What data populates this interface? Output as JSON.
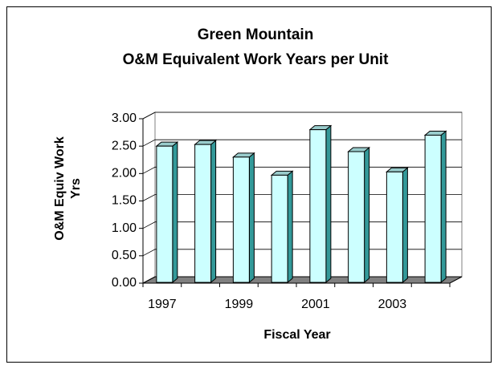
{
  "chart_data": {
    "type": "bar3d",
    "title": [
      "Green Mountain",
      "O&M Equivalent Work Years per Unit"
    ],
    "y_label": "O&M Equiv Work Yrs",
    "x_label": "Fiscal Year",
    "categories": [
      "1997",
      null,
      "1999",
      null,
      "2001",
      null,
      "2003",
      null
    ],
    "values": [
      2.5,
      2.53,
      2.3,
      1.97,
      2.8,
      2.4,
      2.03,
      2.7
    ],
    "color": "#ccffff",
    "ylim": [
      0,
      3
    ],
    "yticks": [
      {
        "value": 0,
        "label": "0.00"
      },
      {
        "value": 0.5,
        "label": "0.50"
      },
      {
        "value": 1,
        "label": "1.00"
      },
      {
        "value": 1.5,
        "label": "1.50"
      },
      {
        "value": 2,
        "label": "2.00"
      },
      {
        "value": 2.5,
        "label": "2.50"
      },
      {
        "value": 3,
        "label": "3.00"
      }
    ],
    "grid": true
  }
}
